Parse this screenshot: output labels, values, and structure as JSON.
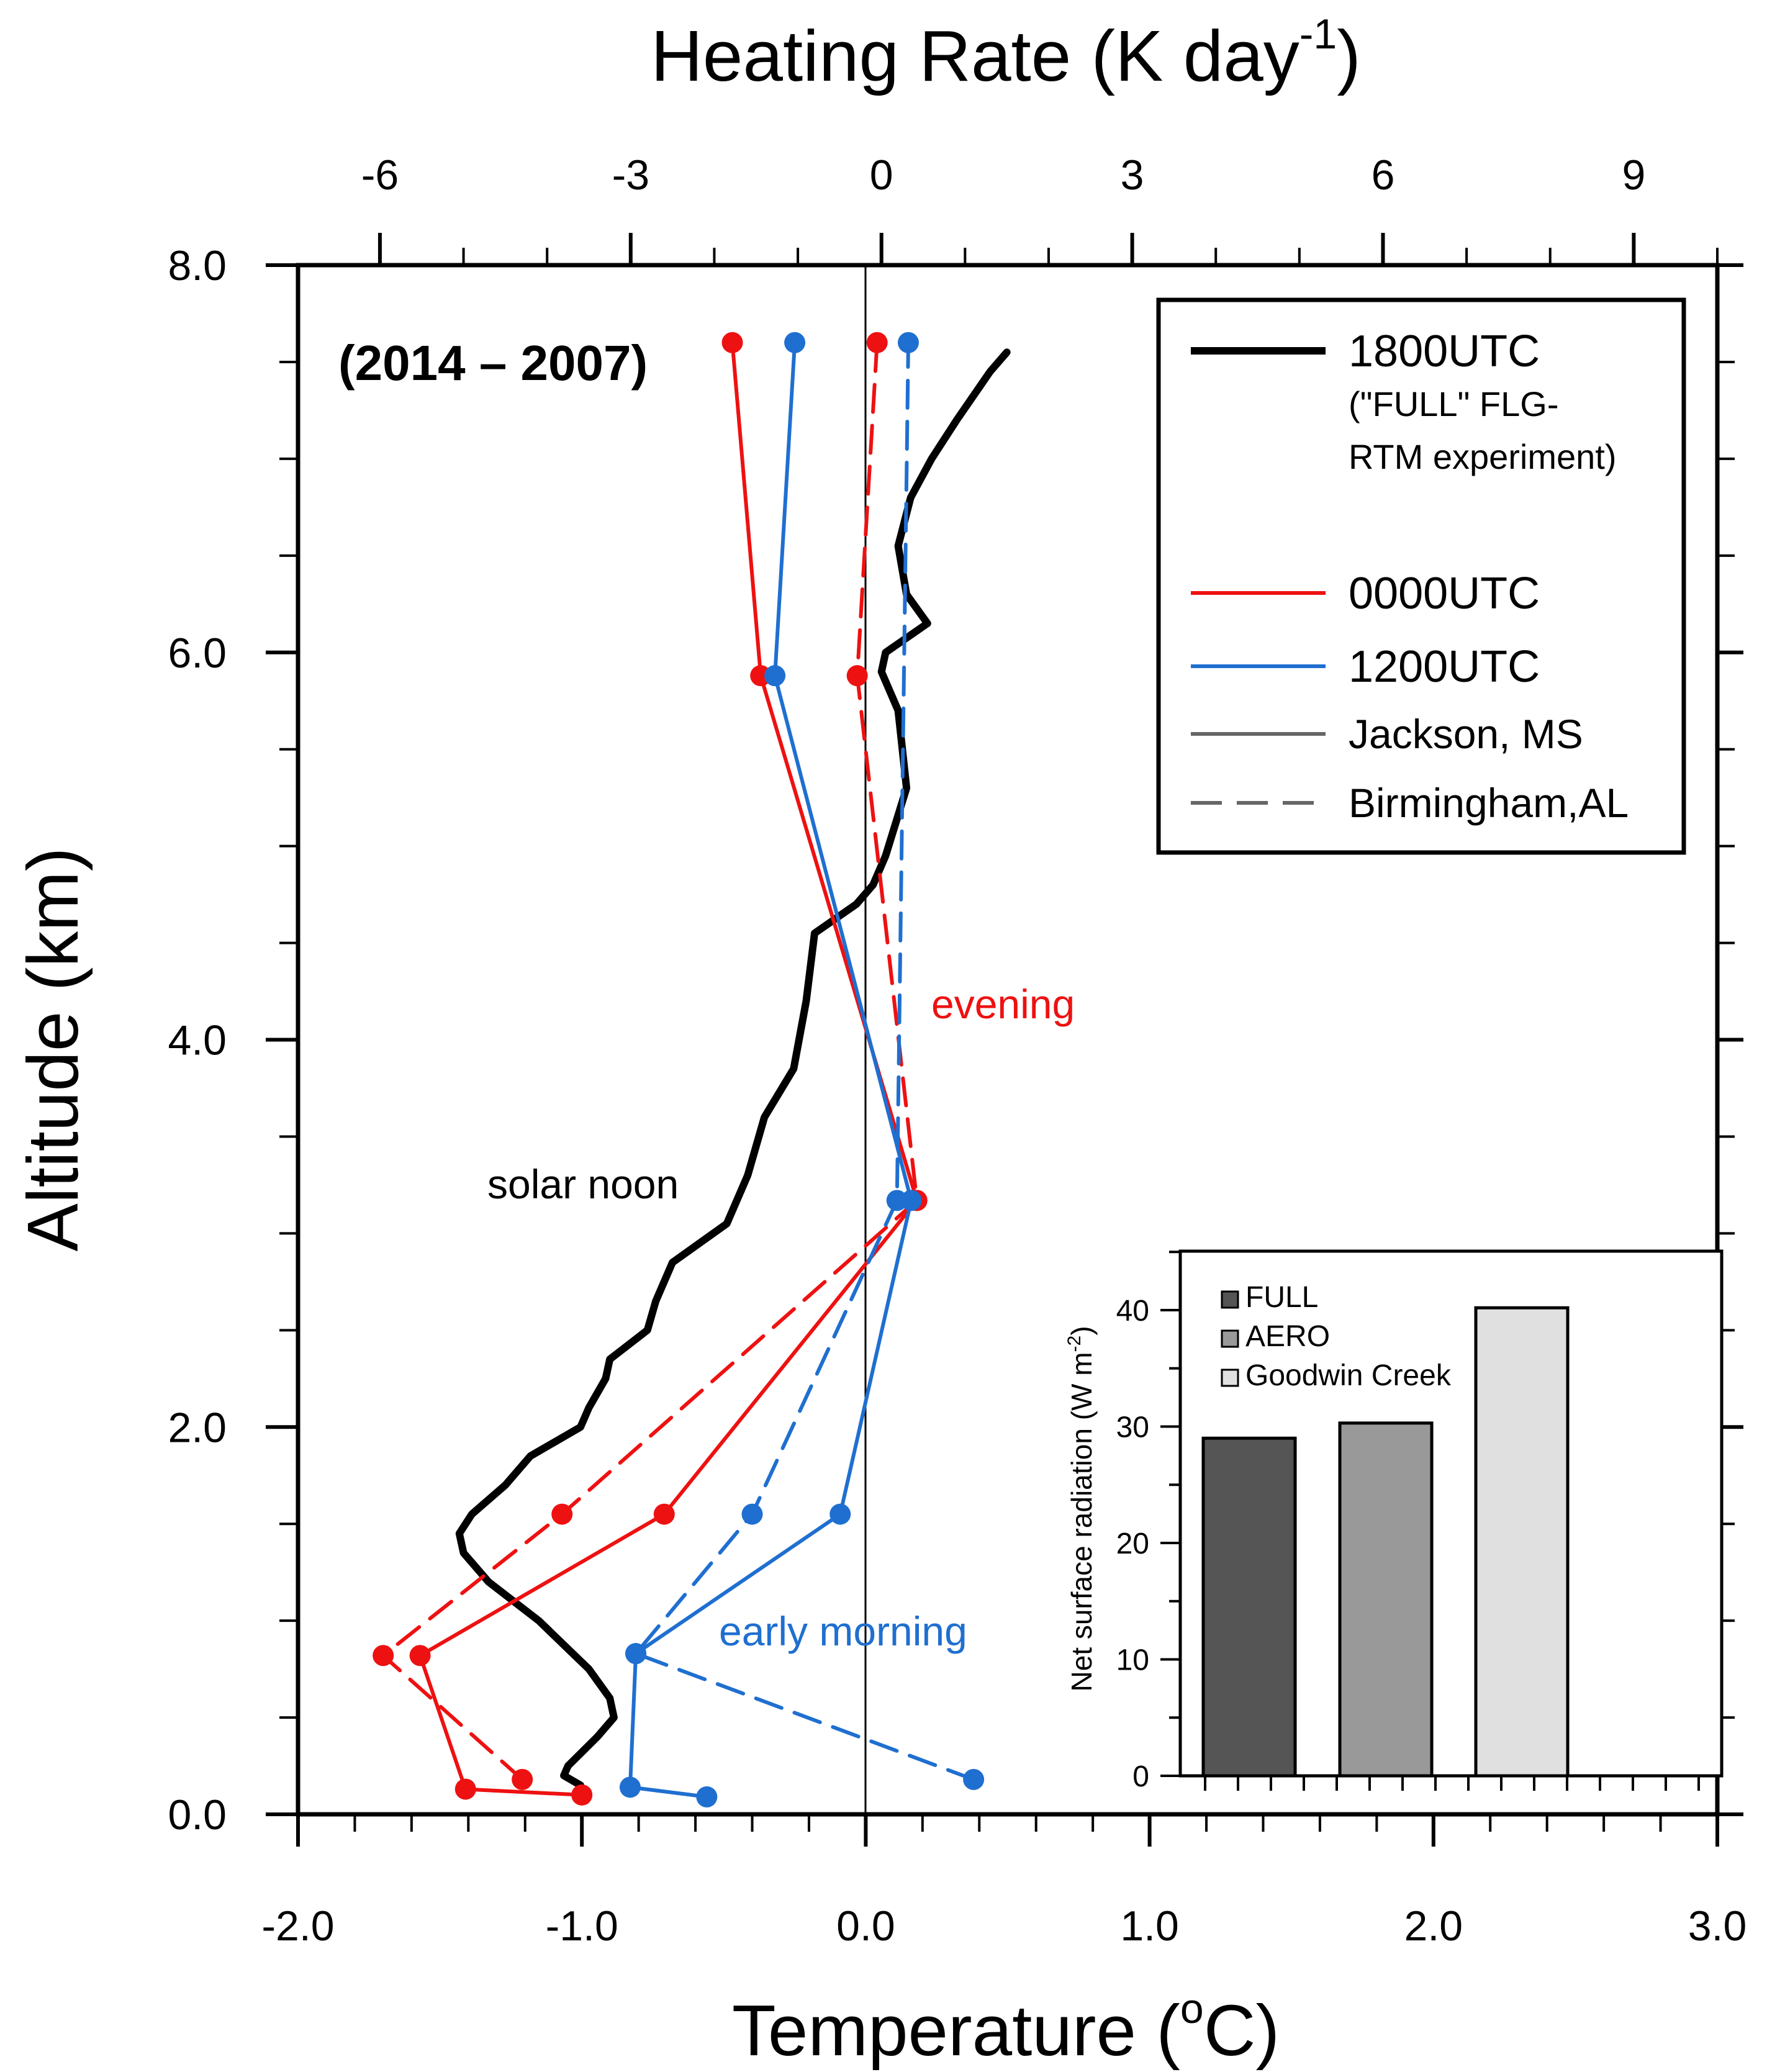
{
  "title": "(2014 – 2007)",
  "top_axis_title": "Heating Rate (K day",
  "top_axis_title_sup": "-1",
  "top_axis_title_end": ")",
  "y_axis_title": "Altitude (km)",
  "x_axis_title": "Temperature (",
  "x_axis_title_sup": "o",
  "x_axis_title_end": "C)",
  "annotations": {
    "evening": "evening",
    "solar_noon": "solar noon",
    "early_morning": "early morning"
  },
  "legend": {
    "items": [
      {
        "label": "1800UTC",
        "color": "#000000",
        "style": "solid-thick"
      },
      {
        "label": "(\"FULL\" FLG-",
        "color": "#000000",
        "style": "text"
      },
      {
        "label": "RTM experiment)",
        "color": "#000000",
        "style": "text"
      },
      {
        "label": "0000UTC",
        "color": "#ee1111",
        "style": "solid"
      },
      {
        "label": "1200UTC",
        "color": "#1f6fd0",
        "style": "solid"
      },
      {
        "label": "Jackson, MS",
        "color": "#666666",
        "style": "solid"
      },
      {
        "label": "Birmingham,AL",
        "color": "#666666",
        "style": "dashed"
      }
    ]
  },
  "chart_data": [
    {
      "type": "line",
      "x_axis": {
        "label": "Temperature (oC)",
        "range": [
          -2.0,
          3.0
        ],
        "ticks": [
          "-2.0",
          "-1.0",
          "0.0",
          "1.0",
          "2.0",
          "3.0"
        ],
        "tick_values": [
          -2.0,
          -1.0,
          0.0,
          1.0,
          2.0,
          3.0
        ]
      },
      "top_axis": {
        "label": "Heating Rate (K day-1)",
        "range": [
          -6.98,
          10.0
        ],
        "ticks": [
          "-6",
          "-3",
          "0",
          "3",
          "6",
          "9"
        ],
        "tick_values": [
          -6,
          -3,
          0,
          3,
          6,
          9
        ]
      },
      "y_axis": {
        "label": "Altitude (km)",
        "range": [
          0.0,
          8.0
        ],
        "ticks": [
          "0.0",
          "2.0",
          "4.0",
          "6.0",
          "8.0"
        ],
        "tick_values": [
          0.0,
          2.0,
          4.0,
          6.0,
          8.0
        ]
      },
      "series": [
        {
          "name": "1800UTC",
          "axis": "heating_rate",
          "color": "#000000",
          "dash": false,
          "markers": false,
          "points": [
            [
              -3.6,
              0.15
            ],
            [
              -3.8,
              0.2
            ],
            [
              -3.75,
              0.25
            ],
            [
              -3.4,
              0.4
            ],
            [
              -3.2,
              0.5
            ],
            [
              -3.25,
              0.6
            ],
            [
              -3.5,
              0.75
            ],
            [
              -4.1,
              1.0
            ],
            [
              -4.7,
              1.2
            ],
            [
              -5.0,
              1.35
            ],
            [
              -5.05,
              1.45
            ],
            [
              -4.9,
              1.55
            ],
            [
              -4.5,
              1.7
            ],
            [
              -4.2,
              1.85
            ],
            [
              -3.6,
              2.0
            ],
            [
              -3.5,
              2.1
            ],
            [
              -3.3,
              2.25
            ],
            [
              -3.25,
              2.35
            ],
            [
              -2.8,
              2.5
            ],
            [
              -2.7,
              2.65
            ],
            [
              -2.6,
              2.75
            ],
            [
              -2.5,
              2.85
            ],
            [
              -1.85,
              3.05
            ],
            [
              -1.6,
              3.3
            ],
            [
              -1.4,
              3.6
            ],
            [
              -1.05,
              3.85
            ],
            [
              -0.9,
              4.2
            ],
            [
              -0.8,
              4.55
            ],
            [
              -0.3,
              4.7
            ],
            [
              -0.1,
              4.8
            ],
            [
              0.05,
              4.95
            ],
            [
              0.3,
              5.3
            ],
            [
              0.2,
              5.7
            ],
            [
              0.0,
              5.9
            ],
            [
              0.05,
              6.0
            ],
            [
              0.55,
              6.15
            ],
            [
              0.3,
              6.3
            ],
            [
              0.2,
              6.55
            ],
            [
              0.35,
              6.8
            ],
            [
              0.6,
              7.0
            ],
            [
              0.9,
              7.2
            ],
            [
              1.3,
              7.45
            ],
            [
              1.5,
              7.55
            ]
          ]
        },
        {
          "name": "0000UTC",
          "site": "Jackson, MS",
          "axis": "temperature",
          "color": "#ee1111",
          "dash": false,
          "markers": true,
          "points": [
            [
              -1.0,
              0.1
            ],
            [
              -1.41,
              0.13
            ],
            [
              -1.57,
              0.82
            ],
            [
              -0.71,
              1.55
            ],
            [
              0.18,
              3.17
            ],
            [
              -0.37,
              5.88
            ],
            [
              -0.47,
              7.6
            ]
          ]
        },
        {
          "name": "0000UTC",
          "site": "Birmingham,AL",
          "axis": "temperature",
          "color": "#ee1111",
          "dash": true,
          "markers": true,
          "points": [
            [
              -1.21,
              0.18
            ],
            [
              -1.7,
              0.82
            ],
            [
              -1.07,
              1.55
            ],
            [
              0.18,
              3.17
            ],
            [
              -0.03,
              5.88
            ],
            [
              0.04,
              7.6
            ]
          ]
        },
        {
          "name": "1200UTC",
          "site": "Jackson, MS",
          "axis": "temperature",
          "color": "#1f6fd0",
          "dash": false,
          "markers": true,
          "points": [
            [
              -0.56,
              0.09
            ],
            [
              -0.83,
              0.14
            ],
            [
              -0.81,
              0.83
            ],
            [
              -0.09,
              1.55
            ],
            [
              0.16,
              3.17
            ],
            [
              -0.32,
              5.88
            ],
            [
              -0.25,
              7.6
            ]
          ]
        },
        {
          "name": "1200UTC",
          "site": "Birmingham,AL",
          "axis": "temperature",
          "color": "#1f6fd0",
          "dash": true,
          "markers": true,
          "points": [
            [
              0.38,
              0.18
            ],
            [
              -0.81,
              0.83
            ],
            [
              -0.4,
              1.55
            ],
            [
              0.11,
              3.17
            ],
            [
              0.15,
              7.6
            ]
          ]
        }
      ]
    },
    {
      "type": "bar",
      "ylabel": "Net surface radiation (W m",
      "ylabel_sup": "-2",
      "ylabel_end": ")",
      "ylim": [
        0,
        45
      ],
      "ticks": [
        "0",
        "10",
        "20",
        "30",
        "40"
      ],
      "tick_values": [
        0,
        10,
        20,
        30,
        40
      ],
      "categories": [
        "FULL",
        "AERO",
        "Goodwin Creek"
      ],
      "values": [
        29.0,
        30.3,
        40.2
      ],
      "colors": [
        "#555555",
        "#999999",
        "#e0e0e0"
      ]
    }
  ]
}
